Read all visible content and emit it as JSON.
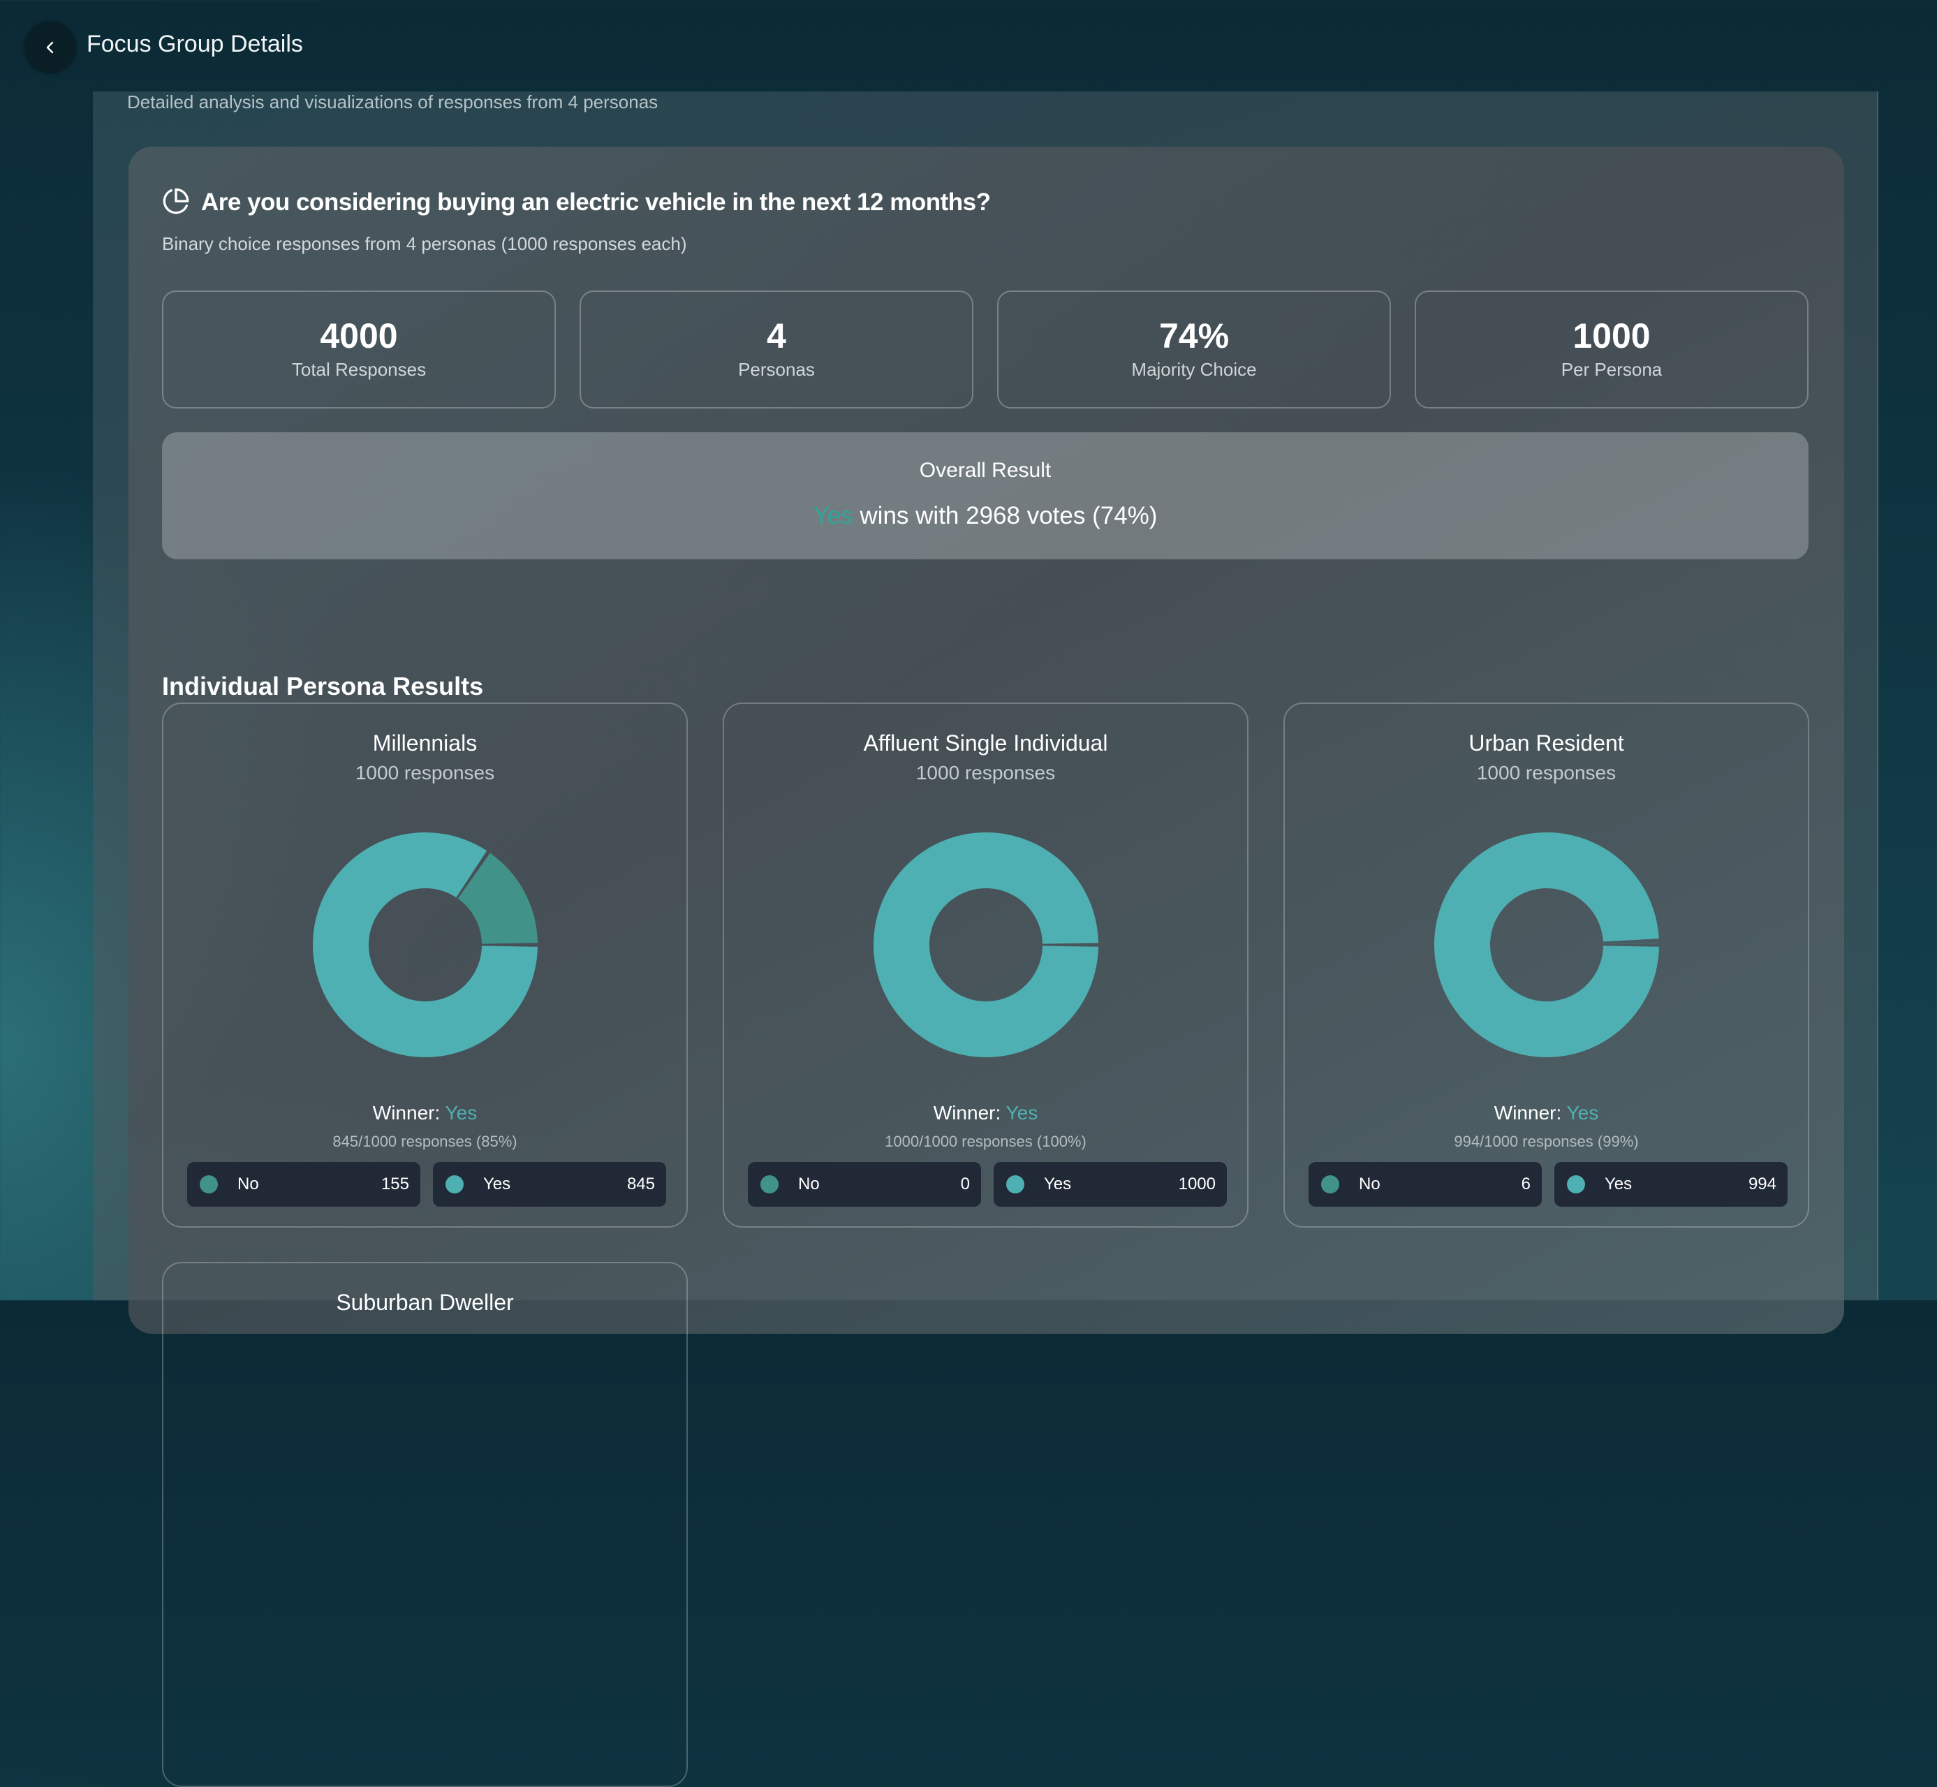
{
  "header": {
    "title": "Focus Group Details",
    "back_icon": "chevron-left-icon"
  },
  "subtitle": "Detailed analysis and visualizations of responses from 4 personas",
  "question": {
    "icon": "pie-chart-icon",
    "title": "Are you considering buying an electric vehicle in the next 12 months?",
    "description": "Binary choice responses from 4 personas (1000 responses each)"
  },
  "stats": [
    {
      "value": "4000",
      "label": "Total Responses"
    },
    {
      "value": "4",
      "label": "Personas"
    },
    {
      "value": "74%",
      "label": "Majority Choice"
    },
    {
      "value": "1000",
      "label": "Per Persona"
    }
  ],
  "overall": {
    "heading": "Overall Result",
    "winner": "Yes",
    "text": " wins with 2968 votes (74%)"
  },
  "section_title": "Individual Persona Results",
  "colors": {
    "No": "#41938a",
    "Yes": "#4fb0b3",
    "chip_bg": "#212836",
    "winner_text": "#2fa598"
  },
  "personas": [
    {
      "name": "Millennials",
      "responses": "1000 responses",
      "winner_label": "Winner: ",
      "winner": "Yes",
      "summary": "845/1000 responses (85%)",
      "options": [
        {
          "label": "No",
          "count": "155",
          "value": 155
        },
        {
          "label": "Yes",
          "count": "845",
          "value": 845
        }
      ]
    },
    {
      "name": "Affluent Single Individual",
      "responses": "1000 responses",
      "winner_label": "Winner: ",
      "winner": "Yes",
      "summary": "1000/1000 responses (100%)",
      "options": [
        {
          "label": "No",
          "count": "0",
          "value": 0
        },
        {
          "label": "Yes",
          "count": "1000",
          "value": 1000
        }
      ]
    },
    {
      "name": "Urban Resident",
      "responses": "1000 responses",
      "winner_label": "Winner: ",
      "winner": "Yes",
      "summary": "994/1000 responses (99%)",
      "options": [
        {
          "label": "No",
          "count": "6",
          "value": 6
        },
        {
          "label": "Yes",
          "count": "994",
          "value": 994
        }
      ]
    },
    {
      "name": "Suburban Dweller"
    }
  ]
}
